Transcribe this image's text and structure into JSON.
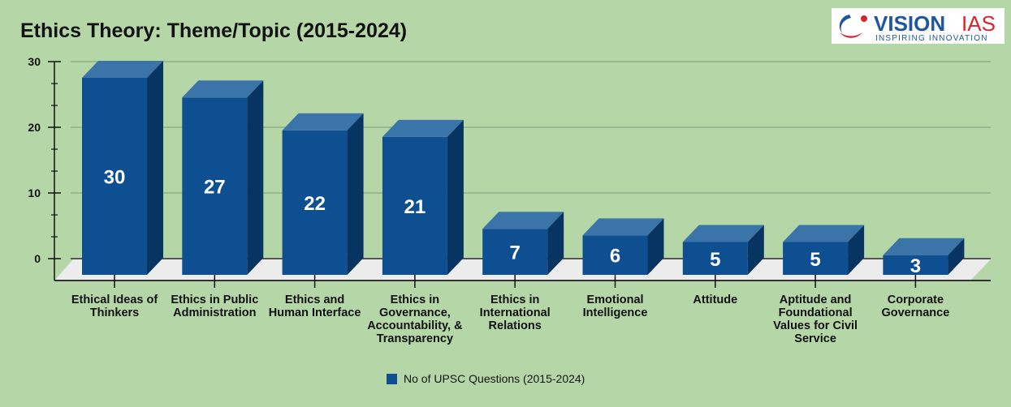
{
  "title": "Ethics Theory: Theme/Topic (2015-2024)",
  "logo": {
    "brand_blue": "VISION",
    "brand_red": "IAS",
    "tagline": "INSPIRING INNOVATION"
  },
  "chart_data": {
    "type": "bar",
    "style": "3d",
    "title": "Ethics Theory: Theme/Topic (2015-2024)",
    "categories": [
      "Ethical Ideas of Thinkers",
      "Ethics in Public Administration",
      "Ethics and Human Interface",
      "Ethics in Governance, Accountability, & Transparency",
      "Ethics in International Relations",
      "Emotional Intelligence",
      "Attitude",
      "Aptitude and Foundational Values for Civil Service",
      "Corporate Governance"
    ],
    "series": [
      {
        "name": "No of UPSC Questions (2015-2024)",
        "values": [
          30,
          27,
          22,
          21,
          7,
          6,
          5,
          5,
          3
        ]
      }
    ],
    "data_labels": [
      "30",
      "27",
      "22",
      "21",
      "7",
      "6",
      "5",
      "5",
      "3"
    ],
    "yticks": [
      "0",
      "10",
      "20",
      "30"
    ],
    "ylim": [
      0,
      30
    ],
    "grid": true,
    "legend": "bottom",
    "colors": {
      "front": "#0d4f91",
      "top": "#3b74a8",
      "side": "#083462",
      "background": "#b5d7a8",
      "floor": "#ececec"
    }
  }
}
